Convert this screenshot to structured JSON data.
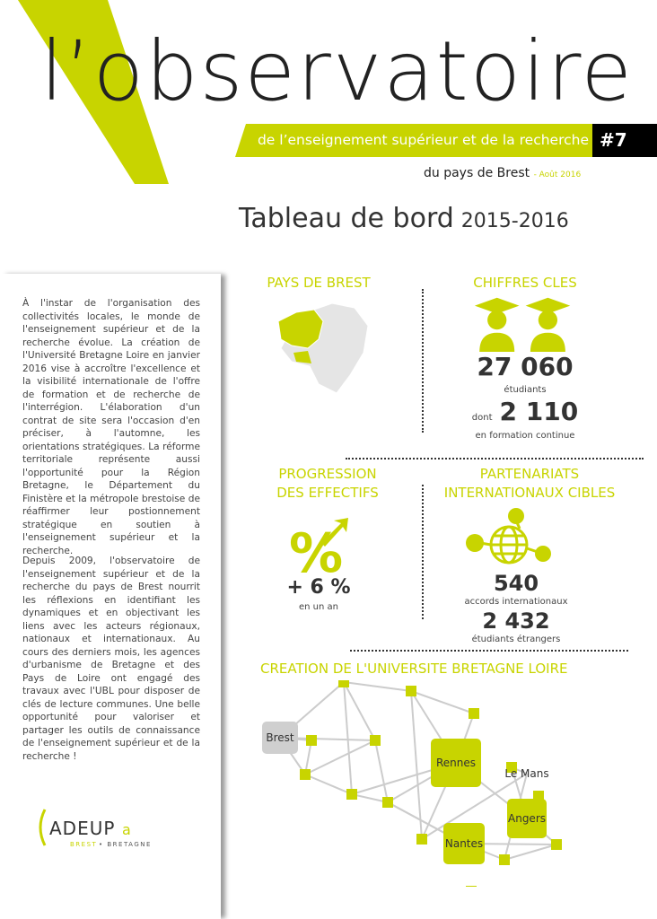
{
  "header": {
    "title": "l’observatoire",
    "band": "de l’enseignement supérieur  et de la recherche",
    "issue": "#7",
    "subtitle": "du pays de Brest",
    "date": "- Août 2016"
  },
  "main_title": {
    "label": "Tableau de bord",
    "years": "2015-2016"
  },
  "left": {
    "paragraphs": [
      "À l'instar de l'organisation des collectivités locales, le monde de l'enseignement supérieur et de la recherche évolue. La création de l'Université Bretagne Loire en janvier 2016 vise à accroître l'excellence et la visibilité internationale de l'offre de formation et de recherche de l'interrégion. L'élaboration d'un contrat de site sera l'occasion d'en préciser, à l'automne, les orientations stratégiques. La réforme territoriale représente aussi l'opportunité pour la Région Bretagne, le Département du Finistère et la métropole brestoise de réaffirmer leur postionnement stratégique en soutien à l'enseignement supérieur et la recherche.",
      "Depuis 2009, l'observatoire de l'enseignement supérieur et de la recherche du pays de Brest nourrit les réflexions en identifiant les dynamiques et en objectivant les liens avec les acteurs régionaux, nationaux et internationaux. Au cours des derniers mois, les agences d'urbanisme de Bretagne et des Pays de Loire ont engagé des travaux avec l'UBL pour disposer de clés de lecture communes. Une belle opportunité pour valoriser et partager les outils de connaissance de l'enseignement supérieur et de la recherche !"
    ],
    "logo": {
      "name": "ADEUPa",
      "tag1": "BREST",
      "tag2": "BRETAGNE"
    }
  },
  "sections": {
    "pays": {
      "title": "PAYS DE BREST"
    },
    "chiffres": {
      "title": "CHIFFRES CLES",
      "students": "27 060",
      "students_label": "étudiants",
      "dont": "dont",
      "continue": "2 110",
      "continue_label": "en formation continue"
    },
    "progression": {
      "title": [
        "PROGRESSION",
        "DES EFFECTIFS"
      ],
      "value": "+ 6 %",
      "label": "en un an"
    },
    "partenariats": {
      "title": [
        "PARTENARIATS",
        "INTERNATIONAUX CIBLES"
      ],
      "accords": "540",
      "accords_label": "accords internationaux",
      "etrangers": "2 432",
      "etrangers_label": "étudiants étrangers"
    },
    "ubl": {
      "title": "CREATION DE L'UNIVERSITE BRETAGNE LOIRE",
      "cities": [
        "Brest",
        "Rennes",
        "Le Mans",
        "Angers",
        "Nantes"
      ]
    }
  },
  "colors": {
    "accent": "#c8d400",
    "text": "#333333"
  }
}
